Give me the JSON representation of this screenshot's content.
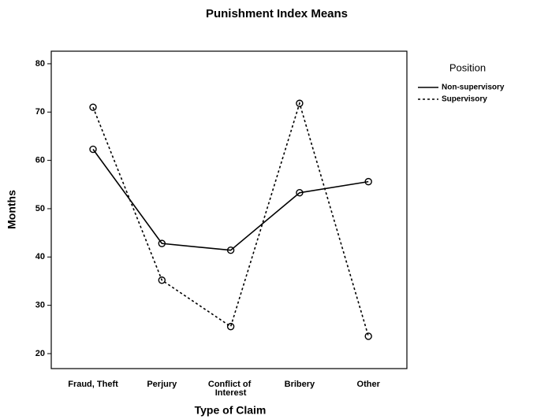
{
  "chart_data": {
    "type": "line",
    "title": "Punishment Index Means",
    "x_label": "Type of Claim",
    "y_label": "Months",
    "categories": [
      "Fraud, Theft",
      "Perjury",
      "Conflict of Interest",
      "Bribery",
      "Other"
    ],
    "series": [
      {
        "name": "Non-supervisory",
        "color": "#000000",
        "dash": "solid",
        "values": [
          62.3,
          42.8,
          41.4,
          53.3,
          55.6
        ]
      },
      {
        "name": "Supervisory",
        "color": "#000000",
        "dash": "dotted",
        "values": [
          71.0,
          35.2,
          25.6,
          71.8,
          23.6
        ]
      }
    ],
    "ylim": [
      16.9,
      82.6
    ],
    "yticks": [
      20,
      30,
      40,
      50,
      60,
      70,
      80
    ],
    "legend_title": "Position",
    "legend_position": "right",
    "grid": false
  }
}
